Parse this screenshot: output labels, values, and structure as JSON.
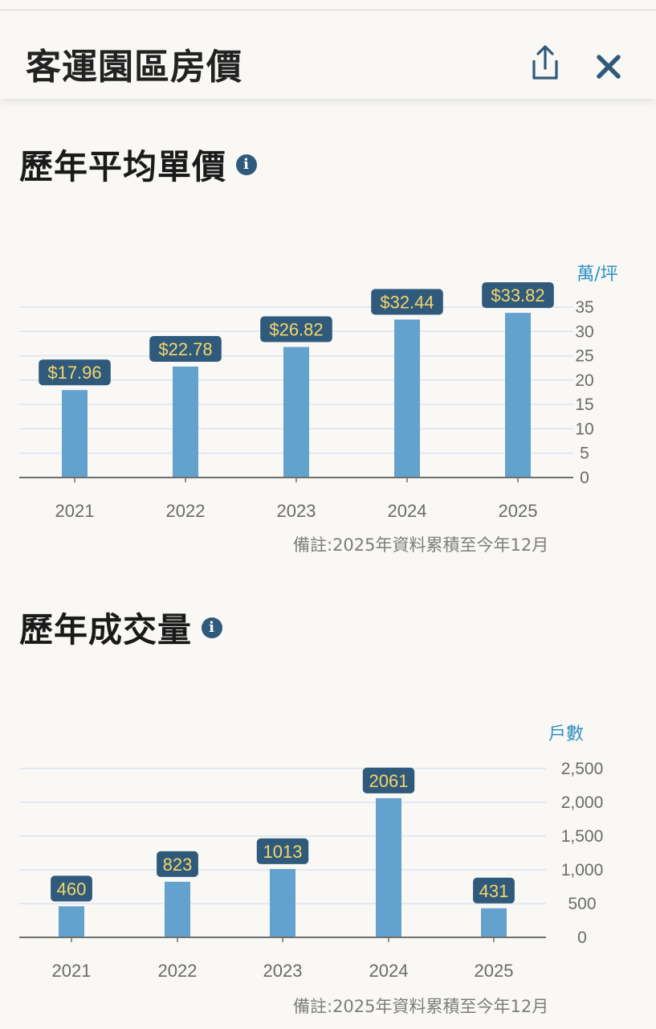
{
  "header": {
    "title": "客運園區房價"
  },
  "icons": {
    "share": "share-icon",
    "close": "close-icon",
    "info": "info-icon"
  },
  "colors": {
    "bar": "#63a2cd",
    "label_bg": "#2f5a7c",
    "label_text": "#f5d66b",
    "unit": "#2d8fc4",
    "grid": "#dde3f3",
    "axis": "#6f6f6f",
    "tick": "#6a6a6a"
  },
  "sections": [
    {
      "title": "歷年平均單價",
      "note": "備註:2025年資料累積至今年12月"
    },
    {
      "title": "歷年成交量",
      "note": "備註:2025年資料累積至今年12月"
    }
  ],
  "chart_data": [
    {
      "type": "bar",
      "categories": [
        "2021",
        "2022",
        "2023",
        "2024",
        "2025"
      ],
      "values": [
        17.96,
        22.78,
        26.82,
        32.44,
        33.82
      ],
      "data_labels": [
        "$17.96",
        "$22.78",
        "$26.82",
        "$32.44",
        "$33.82"
      ],
      "y_unit": "萬/坪",
      "yticks": [
        "0",
        "5",
        "10",
        "15",
        "20",
        "25",
        "30",
        "35"
      ],
      "ylim": [
        0,
        35
      ],
      "grid": true,
      "y_axis_side": "right"
    },
    {
      "type": "bar",
      "categories": [
        "2021",
        "2022",
        "2023",
        "2024",
        "2025"
      ],
      "values": [
        460,
        823,
        1013,
        2061,
        431
      ],
      "data_labels": [
        "460",
        "823",
        "1013",
        "2061",
        "431"
      ],
      "y_unit": "戶數",
      "yticks": [
        "0",
        "500",
        "1,000",
        "1,500",
        "2,000",
        "2,500"
      ],
      "ylim": [
        0,
        2500
      ],
      "grid": true,
      "y_axis_side": "right"
    }
  ]
}
